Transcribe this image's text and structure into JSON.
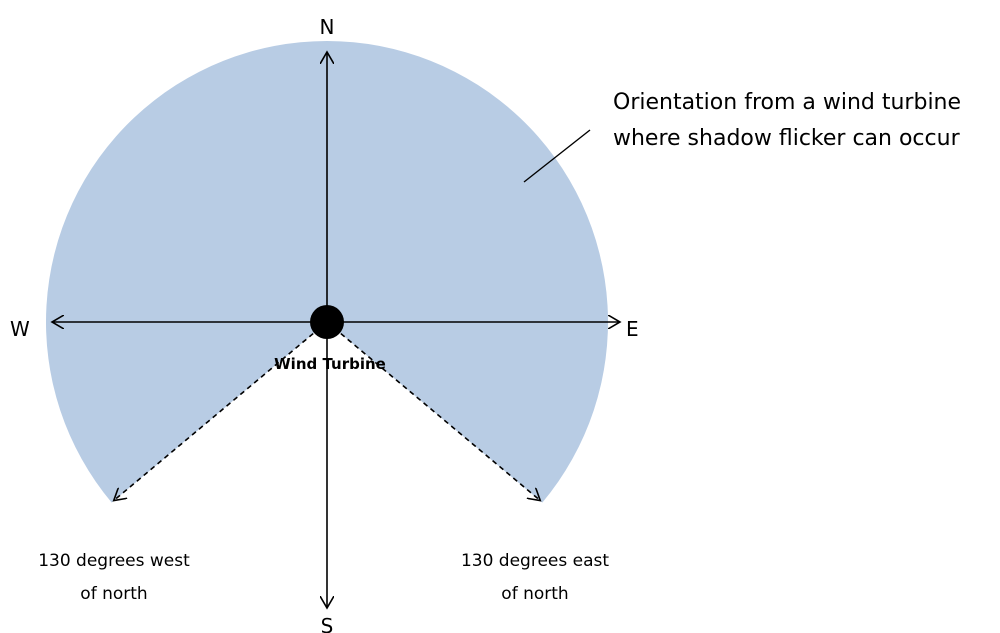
{
  "compass": {
    "north": "N",
    "south": "S",
    "east": "E",
    "west": "W"
  },
  "turbine": {
    "label": "Wind Turbine"
  },
  "zone": {
    "angle_degrees": 130,
    "fill_color": "#b8cce4",
    "description_line1": "Orientation from a wind turbine",
    "description_line2": "where shadow flicker can occur"
  },
  "limits": {
    "west_line1": "130 degrees west",
    "west_line2": "of north",
    "east_line1": "130 degrees east",
    "east_line2": "of north"
  }
}
